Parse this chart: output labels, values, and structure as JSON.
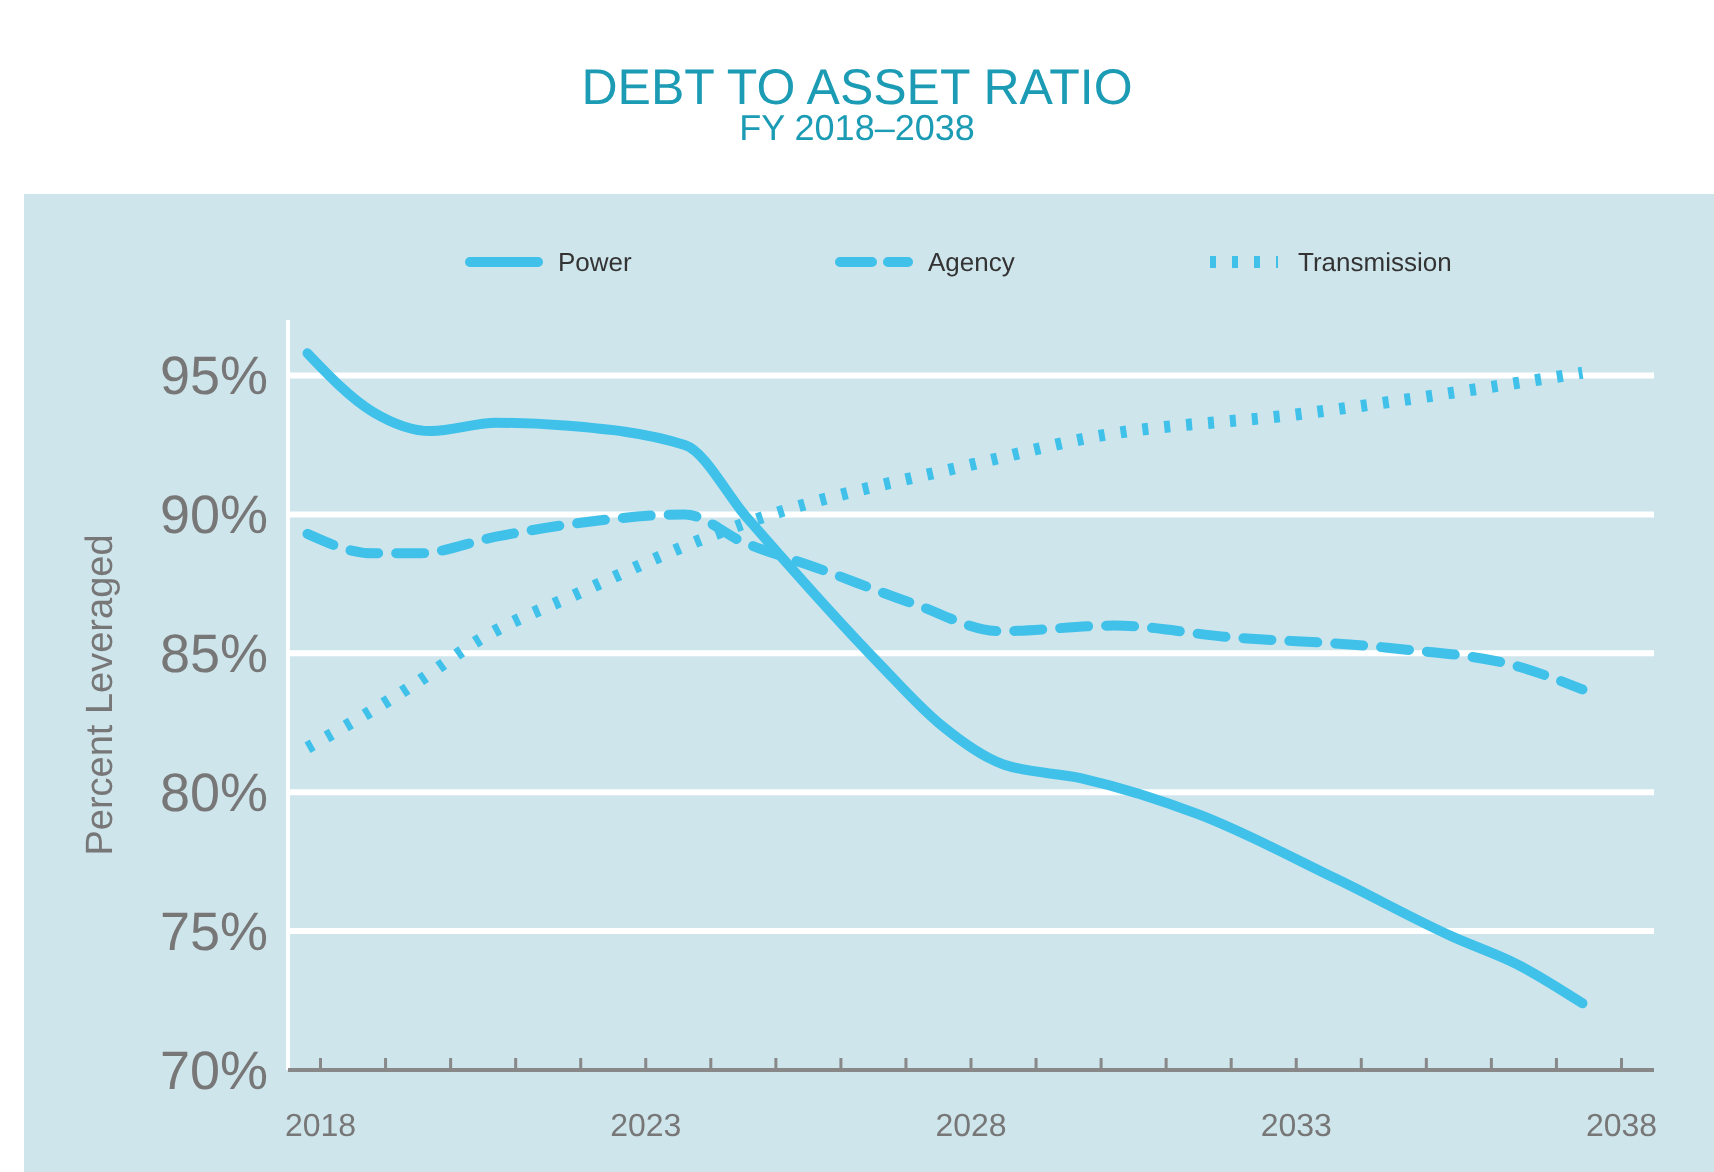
{
  "chart_data": {
    "type": "line",
    "title": "DEBT TO ASSET RATIO",
    "subtitle": "FY 2018–2038",
    "ylabel": "Percent Leveraged",
    "xlim": [
      2017.5,
      2038.5
    ],
    "xticks": [
      2018,
      {
        "value": 2019,
        "label": null
      },
      {
        "value": 2020,
        "label": null
      },
      {
        "value": 2021,
        "label": null
      },
      {
        "value": 2022,
        "label": null
      },
      2023,
      {
        "value": 2024,
        "label": null
      },
      {
        "value": 2025,
        "label": null
      },
      {
        "value": 2026,
        "label": null
      },
      {
        "value": 2027,
        "label": null
      },
      2028,
      {
        "value": 2029,
        "label": null
      },
      {
        "value": 2030,
        "label": null
      },
      {
        "value": 2031,
        "label": null
      },
      {
        "value": 2032,
        "label": null
      },
      2033,
      {
        "value": 2034,
        "label": null
      },
      {
        "value": 2035,
        "label": null
      },
      {
        "value": 2036,
        "label": null
      },
      {
        "value": 2037,
        "label": null
      },
      2038
    ],
    "ylim": [
      70,
      97
    ],
    "yticks": [
      {
        "value": 70,
        "label": "70%"
      },
      {
        "value": 75,
        "label": "75%"
      },
      {
        "value": 80,
        "label": "80%"
      },
      {
        "value": 85,
        "label": "85%"
      },
      {
        "value": 90,
        "label": "90%"
      },
      {
        "value": 95,
        "label": "95%"
      }
    ],
    "grid": "y",
    "legend": "top",
    "marker": "none",
    "series": [
      {
        "name": "Power",
        "color": "#3fc1ea",
        "line_style": "solid",
        "x": [
          2017.8,
          2018.8,
          2019.7,
          2020.7,
          2021.75,
          2023.6,
          2024.55,
          2026.6,
          2027.5,
          2028.5,
          2029.7,
          2031.5,
          2033.6,
          2035.4,
          2036.4,
          2037.4
        ],
        "values": [
          95.8,
          93.7,
          93.0,
          93.3,
          93.2,
          92.5,
          89.9,
          84.6,
          82.5,
          81.0,
          80.5,
          79.2,
          76.9,
          74.8,
          73.8,
          72.4
        ]
      },
      {
        "name": "Agency",
        "color": "#3fc1ea",
        "line_style": "dashed",
        "x": [
          2017.8,
          2018.8,
          2019.5,
          2020.7,
          2022.0,
          2023.6,
          2024.5,
          2025.6,
          2027.1,
          2028.45,
          2030.2,
          2031.9,
          2034.4,
          2036.45,
          2037.4
        ],
        "values": [
          89.3,
          88.6,
          88.6,
          89.2,
          89.7,
          90.0,
          89.0,
          88.1,
          86.8,
          85.8,
          86.0,
          85.6,
          85.2,
          84.5,
          83.7
        ]
      },
      {
        "name": "Transmission",
        "color": "#3fc1ea",
        "line_style": "dotted",
        "x": [
          2017.8,
          2019.45,
          2020.45,
          2022.0,
          2023.75,
          2024.55,
          2028.2,
          2029.9,
          2033.0,
          2037.4
        ],
        "values": [
          81.6,
          83.9,
          85.5,
          87.2,
          89.0,
          89.7,
          91.9,
          92.8,
          93.6,
          95.1
        ]
      }
    ]
  }
}
